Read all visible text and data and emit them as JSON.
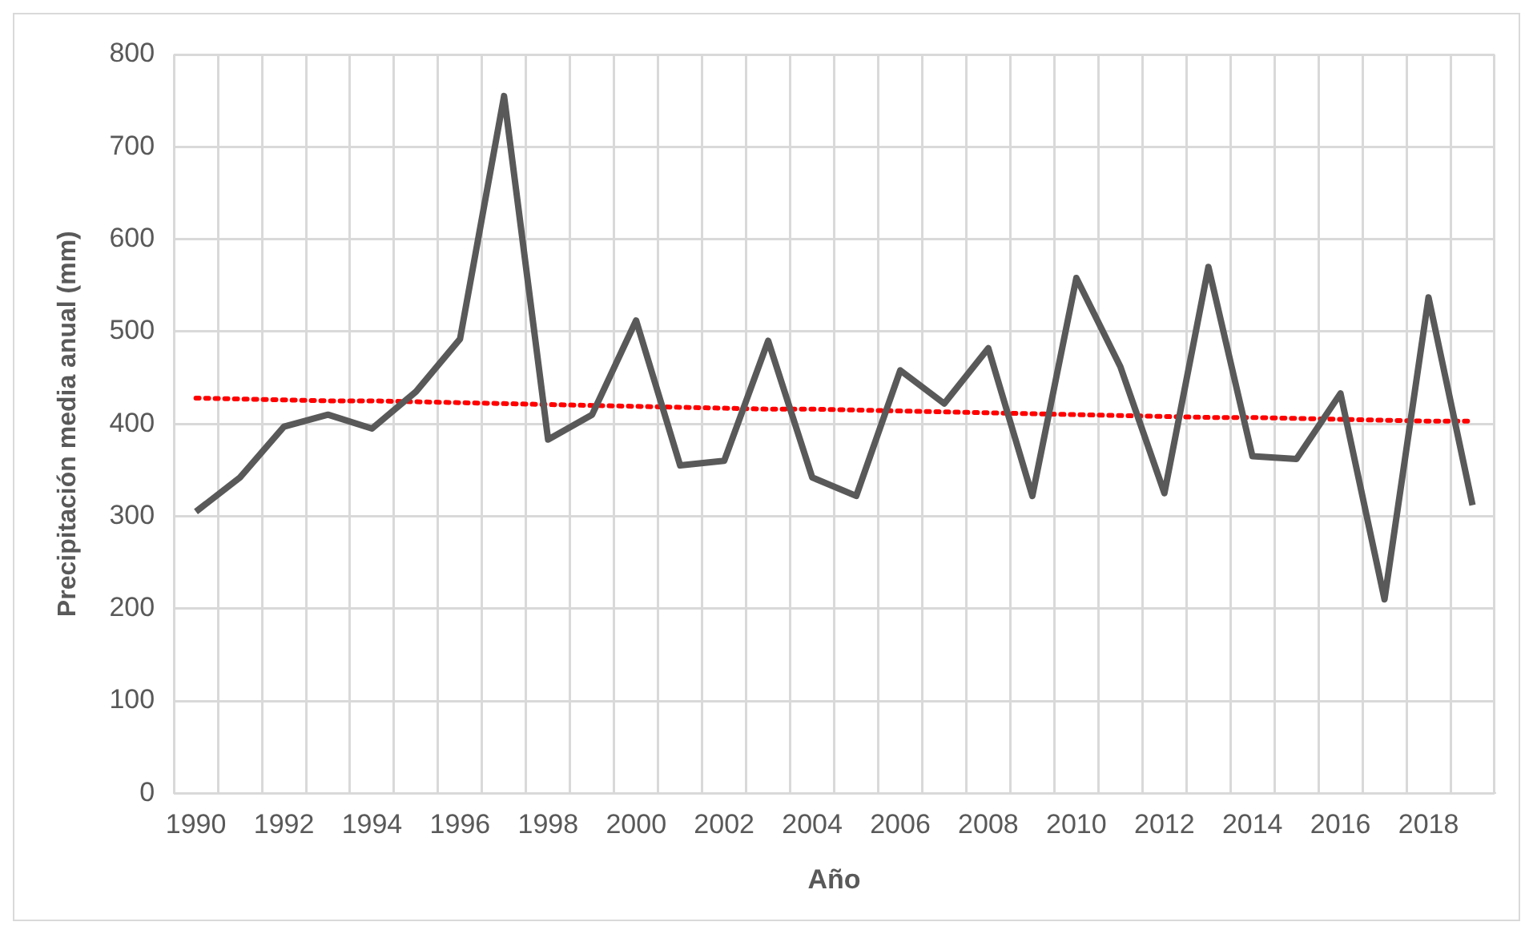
{
  "chart_data": {
    "type": "line",
    "xlabel": "Año",
    "ylabel": "Precipitación media anual (mm)",
    "categories": [
      "1990",
      null,
      "1992",
      null,
      "1994",
      null,
      "1996",
      null,
      "1998",
      null,
      "2000",
      null,
      "2002",
      null,
      "2004",
      null,
      "2006",
      null,
      "2008",
      null,
      "2010",
      null,
      "2012",
      null,
      "2014",
      null,
      "2016",
      null,
      "2018",
      null
    ],
    "series": [
      {
        "color": "#595959",
        "values": [
          305,
          342,
          397,
          410,
          395,
          435,
          492,
          755,
          383,
          410,
          512,
          355,
          360,
          490,
          342,
          322,
          458,
          422,
          482,
          322,
          558,
          462,
          325,
          570,
          365,
          362,
          433,
          210,
          537,
          312
        ]
      },
      {
        "color": "#ff0000",
        "line_style": "dotted",
        "values": [
          428,
          427,
          426,
          425,
          425,
          424,
          423,
          422,
          421,
          420,
          419,
          418,
          417,
          416,
          416,
          415,
          414,
          413,
          412,
          411,
          410,
          409,
          408,
          407,
          407,
          406,
          405,
          404,
          403,
          403
        ]
      }
    ],
    "ylim": [
      0,
      800
    ],
    "yticks": [
      0,
      100,
      200,
      300,
      400,
      500,
      600,
      700,
      800
    ],
    "grid": true,
    "marker": "none",
    "legend": false
  }
}
